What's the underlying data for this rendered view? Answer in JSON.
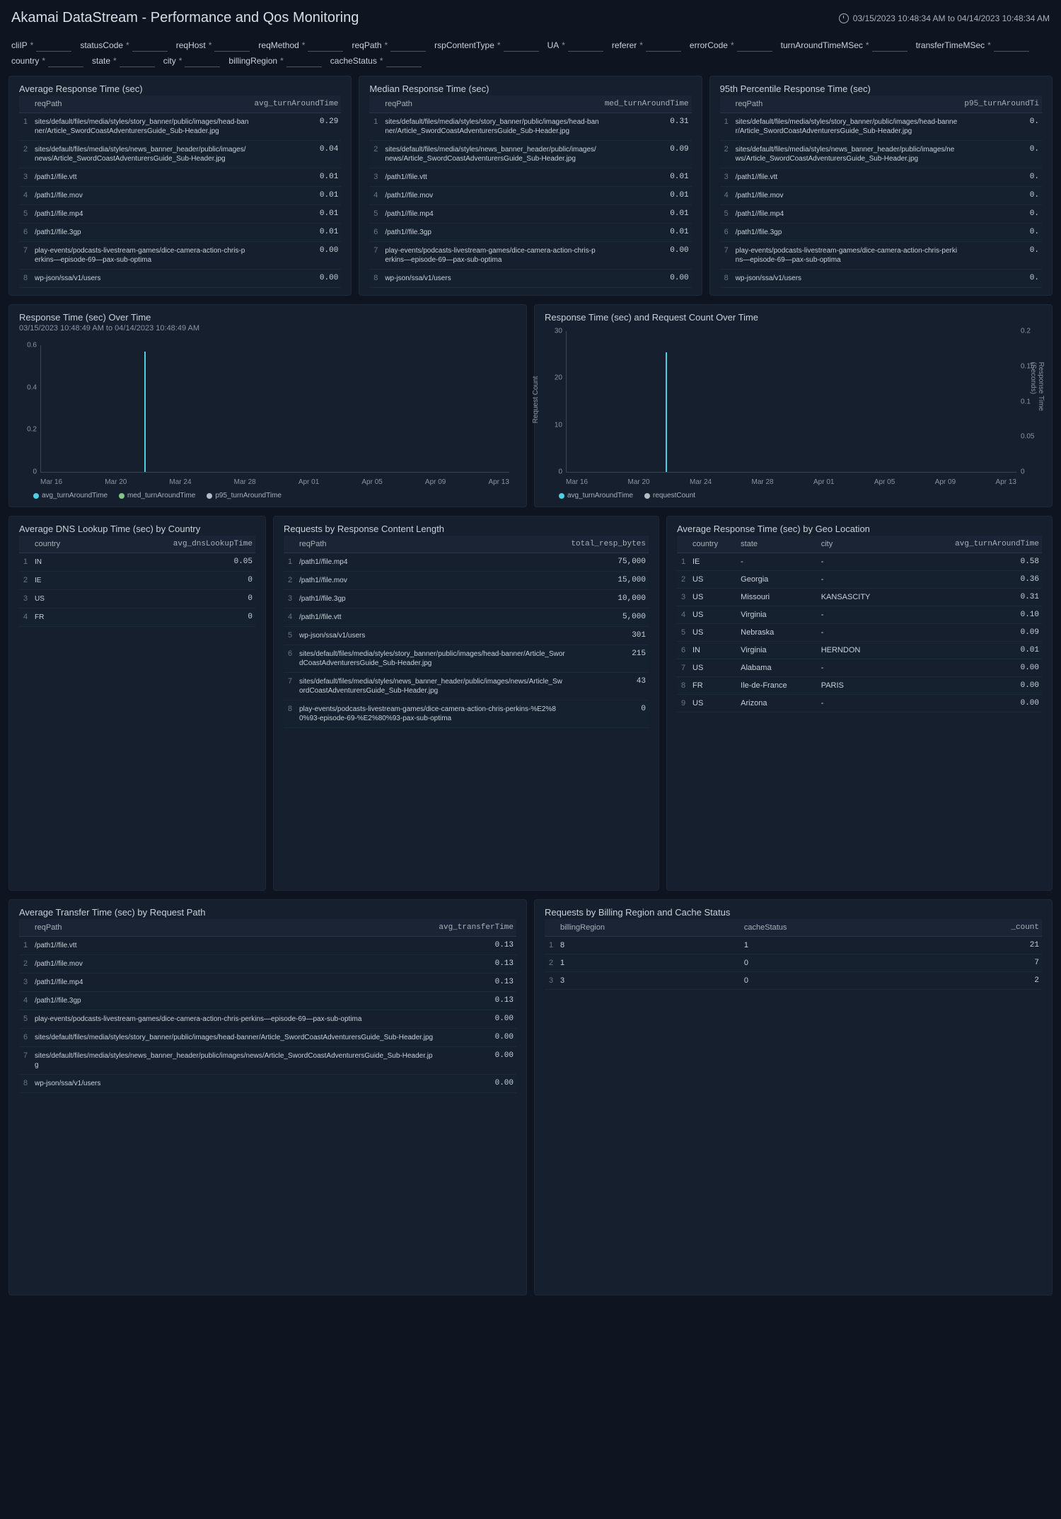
{
  "header": {
    "title": "Akamai DataStream - Performance and Qos Monitoring",
    "date_range": "03/15/2023 10:48:34 AM to 04/14/2023 10:48:34 AM"
  },
  "filters": [
    "cliIP",
    "statusCode",
    "reqHost",
    "reqMethod",
    "reqPath",
    "rspContentType",
    "UA",
    "referer",
    "errorCode",
    "turnAroundTimeMSec",
    "transferTimeMSec",
    "country",
    "state",
    "city",
    "billingRegion",
    "cacheStatus"
  ],
  "panels": {
    "avg_resp": {
      "title": "Average Response Time (sec)",
      "cols": [
        "reqPath",
        "avg_turnAroundTime"
      ],
      "rows": [
        [
          "sites/default/files/media/styles/story_banner/public/images/head-banner/Article_SwordCoastAdventurersGuide_Sub-Header.jpg",
          "0.29"
        ],
        [
          "sites/default/files/media/styles/news_banner_header/public/images/news/Article_SwordCoastAdventurersGuide_Sub-Header.jpg",
          "0.04"
        ],
        [
          "/path1//file.vtt",
          "0.01"
        ],
        [
          "/path1//file.mov",
          "0.01"
        ],
        [
          "/path1//file.mp4",
          "0.01"
        ],
        [
          "/path1//file.3gp",
          "0.01"
        ],
        [
          "play-events/podcasts-livestream-games/dice-camera-action-chris-perkins—episode-69—pax-sub-optima",
          "0.00"
        ],
        [
          "wp-json/ssa/v1/users",
          "0.00"
        ]
      ]
    },
    "med_resp": {
      "title": "Median Response Time (sec)",
      "cols": [
        "reqPath",
        "med_turnAroundTime"
      ],
      "rows": [
        [
          "sites/default/files/media/styles/story_banner/public/images/head-banner/Article_SwordCoastAdventurersGuide_Sub-Header.jpg",
          "0.31"
        ],
        [
          "sites/default/files/media/styles/news_banner_header/public/images/news/Article_SwordCoastAdventurersGuide_Sub-Header.jpg",
          "0.09"
        ],
        [
          "/path1//file.vtt",
          "0.01"
        ],
        [
          "/path1//file.mov",
          "0.01"
        ],
        [
          "/path1//file.mp4",
          "0.01"
        ],
        [
          "/path1//file.3gp",
          "0.01"
        ],
        [
          "play-events/podcasts-livestream-games/dice-camera-action-chris-perkins—episode-69—pax-sub-optima",
          "0.00"
        ],
        [
          "wp-json/ssa/v1/users",
          "0.00"
        ]
      ]
    },
    "p95_resp": {
      "title": "95th Percentile Response Time (sec)",
      "cols": [
        "reqPath",
        "p95_turnAroundTi"
      ],
      "rows": [
        [
          "sites/default/files/media/styles/story_banner/public/images/head-banner/Article_SwordCoastAdventurersGuide_Sub-Header.jpg",
          "0."
        ],
        [
          "sites/default/files/media/styles/news_banner_header/public/images/news/Article_SwordCoastAdventurersGuide_Sub-Header.jpg",
          "0."
        ],
        [
          "/path1//file.vtt",
          "0."
        ],
        [
          "/path1//file.mov",
          "0."
        ],
        [
          "/path1//file.mp4",
          "0."
        ],
        [
          "/path1//file.3gp",
          "0."
        ],
        [
          "play-events/podcasts-livestream-games/dice-camera-action-chris-perkins—episode-69—pax-sub-optima",
          "0."
        ],
        [
          "wp-json/ssa/v1/users",
          "0."
        ]
      ]
    },
    "resp_over_time": {
      "title": "Response Time (sec) Over Time",
      "subtitle": "03/15/2023 10:48:49 AM to 04/14/2023 10:48:49 AM",
      "y_ticks": [
        "0",
        "0.2",
        "0.4",
        "0.6"
      ],
      "x_ticks": [
        "Mar 16",
        "Mar 20",
        "Mar 24",
        "Mar 28",
        "Apr 01",
        "Apr 05",
        "Apr 09",
        "Apr 13"
      ],
      "legend": [
        {
          "label": "avg_turnAroundTime",
          "color": "#4dd0e1"
        },
        {
          "label": "med_turnAroundTime",
          "color": "#81c784"
        },
        {
          "label": "p95_turnAroundTime",
          "color": "#b0bec5"
        }
      ],
      "spike_pos_pct": 22,
      "spike_height_pct": 95
    },
    "resp_req_over_time": {
      "title": "Response Time (sec) and Request Count Over Time",
      "y_left_label": "Request Count",
      "y_right_label": "Response Time (Seconds)",
      "y_left_ticks": [
        "0",
        "10",
        "20",
        "30"
      ],
      "y_right_ticks": [
        "0",
        "0.05",
        "0.1",
        "0.15",
        "0.2"
      ],
      "x_ticks": [
        "Mar 16",
        "Mar 20",
        "Mar 24",
        "Mar 28",
        "Apr 01",
        "Apr 05",
        "Apr 09",
        "Apr 13"
      ],
      "legend": [
        {
          "label": "avg_turnAroundTime",
          "color": "#4dd0e1"
        },
        {
          "label": "requestCount",
          "color": "#b0bec5"
        }
      ],
      "spike_pos_pct": 22,
      "spike_height_pct": 85
    },
    "dns_country": {
      "title": "Average DNS Lookup Time (sec) by Country",
      "cols": [
        "country",
        "avg_dnsLookupTime"
      ],
      "rows": [
        [
          "IN",
          "0.05"
        ],
        [
          "IE",
          "0"
        ],
        [
          "US",
          "0"
        ],
        [
          "FR",
          "0"
        ]
      ]
    },
    "req_content_len": {
      "title": "Requests by Response Content Length",
      "cols": [
        "reqPath",
        "total_resp_bytes"
      ],
      "rows": [
        [
          "/path1//file.mp4",
          "75,000"
        ],
        [
          "/path1//file.mov",
          "15,000"
        ],
        [
          "/path1//file.3gp",
          "10,000"
        ],
        [
          "/path1//file.vtt",
          "5,000"
        ],
        [
          "wp-json/ssa/v1/users",
          "301"
        ],
        [
          "sites/default/files/media/styles/story_banner/public/images/head-banner/Article_SwordCoastAdventurersGuide_Sub-Header.jpg",
          "215"
        ],
        [
          "sites/default/files/media/styles/news_banner_header/public/images/news/Article_SwordCoastAdventurersGuide_Sub-Header.jpg",
          "43"
        ],
        [
          "play-events/podcasts-livestream-games/dice-camera-action-chris-perkins-%E2%80%93-episode-69-%E2%80%93-pax-sub-optima",
          "0"
        ]
      ]
    },
    "resp_geo": {
      "title": "Average Response Time (sec) by Geo Location",
      "cols": [
        "country",
        "state",
        "city",
        "avg_turnAroundTime"
      ],
      "rows": [
        [
          "IE",
          "-",
          "-",
          "0.58"
        ],
        [
          "US",
          "Georgia",
          "-",
          "0.36"
        ],
        [
          "US",
          "Missouri",
          "KANSASCITY",
          "0.31"
        ],
        [
          "US",
          "Virginia",
          "-",
          "0.10"
        ],
        [
          "US",
          "Nebraska",
          "-",
          "0.09"
        ],
        [
          "IN",
          "Virginia",
          "HERNDON",
          "0.01"
        ],
        [
          "US",
          "Alabama",
          "-",
          "0.00"
        ],
        [
          "FR",
          "Ile-de-France",
          "PARIS",
          "0.00"
        ],
        [
          "US",
          "Arizona",
          "-",
          "0.00"
        ]
      ]
    },
    "transfer_time": {
      "title": "Average Transfer Time (sec) by Request Path",
      "cols": [
        "reqPath",
        "avg_transferTime"
      ],
      "rows": [
        [
          "/path1//file.vtt",
          "0.13"
        ],
        [
          "/path1//file.mov",
          "0.13"
        ],
        [
          "/path1//file.mp4",
          "0.13"
        ],
        [
          "/path1//file.3gp",
          "0.13"
        ],
        [
          "play-events/podcasts-livestream-games/dice-camera-action-chris-perkins—episode-69—pax-sub-optima",
          "0.00"
        ],
        [
          "sites/default/files/media/styles/story_banner/public/images/head-banner/Article_SwordCoastAdventurersGuide_Sub-Header.jpg",
          "0.00"
        ],
        [
          "sites/default/files/media/styles/news_banner_header/public/images/news/Article_SwordCoastAdventurersGuide_Sub-Header.jpg",
          "0.00"
        ],
        [
          "wp-json/ssa/v1/users",
          "0.00"
        ]
      ]
    },
    "billing_cache": {
      "title": "Requests by Billing Region and Cache Status",
      "cols": [
        "billingRegion",
        "cacheStatus",
        "_count"
      ],
      "rows": [
        [
          "8",
          "1",
          "21"
        ],
        [
          "1",
          "0",
          "7"
        ],
        [
          "3",
          "0",
          "2"
        ]
      ]
    }
  },
  "colors": {
    "bg": "#0e1520",
    "panel_bg": "#151f2e",
    "border": "#1e2838",
    "text": "#c9d1d9",
    "muted": "#8b95a0"
  }
}
